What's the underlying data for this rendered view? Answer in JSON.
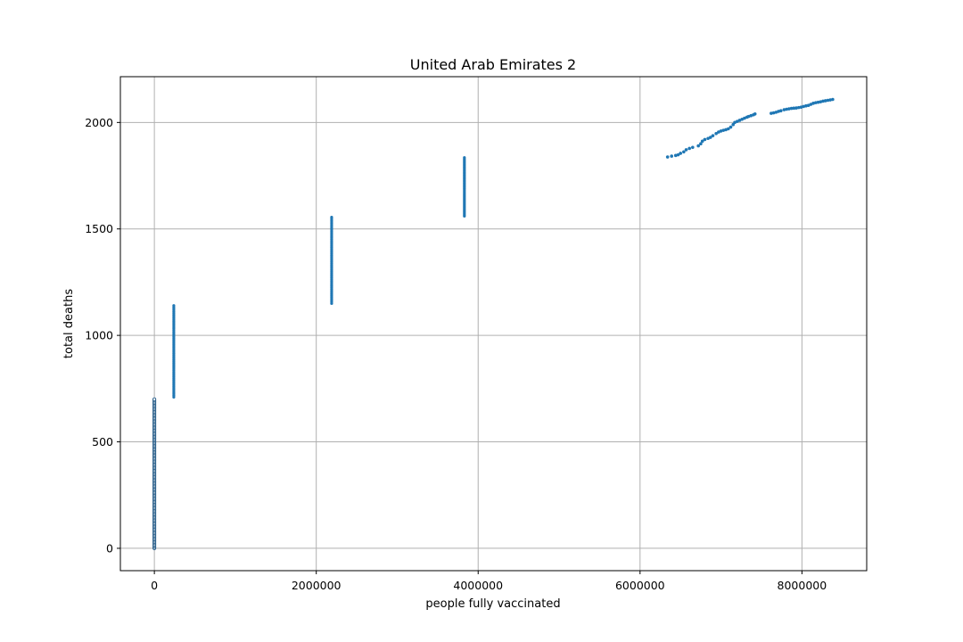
{
  "chart_data": {
    "type": "scatter",
    "title": "United Arab Emirates 2",
    "xlabel": "people fully vaccinated",
    "ylabel": "total deaths",
    "xlim": [
      -420000,
      8800000
    ],
    "ylim": [
      -105,
      2215
    ],
    "x_ticks": [
      0,
      2000000,
      4000000,
      6000000,
      8000000
    ],
    "x_tick_labels": [
      "0",
      "2000000",
      "4000000",
      "6000000",
      "8000000"
    ],
    "y_ticks": [
      0,
      500,
      1000,
      1500,
      2000
    ],
    "y_tick_labels": [
      "0",
      "500",
      "1000",
      "1500",
      "2000"
    ],
    "grid": true,
    "marker_color": "#1f77b4",
    "marker_edge_color": "#2a5f8a",
    "clusters": [
      {
        "x": 0,
        "y_min": 0,
        "y_max": 700,
        "count": 120,
        "marker": "hollow"
      },
      {
        "x": 240000,
        "y_min": 710,
        "y_max": 1140,
        "count": 60,
        "marker": "filled"
      },
      {
        "x": 2190000,
        "y_min": 1150,
        "y_max": 1555,
        "count": 55,
        "marker": "filled"
      },
      {
        "x": 3830000,
        "y_min": 1560,
        "y_max": 1835,
        "count": 45,
        "marker": "filled"
      }
    ],
    "points": [
      [
        6340000,
        1838
      ],
      [
        6390000,
        1842
      ],
      [
        6440000,
        1845
      ],
      [
        6470000,
        1848
      ],
      [
        6500000,
        1855
      ],
      [
        6540000,
        1862
      ],
      [
        6570000,
        1872
      ],
      [
        6610000,
        1878
      ],
      [
        6650000,
        1883
      ],
      [
        6720000,
        1890
      ],
      [
        6750000,
        1900
      ],
      [
        6770000,
        1912
      ],
      [
        6800000,
        1920
      ],
      [
        6840000,
        1925
      ],
      [
        6870000,
        1930
      ],
      [
        6900000,
        1938
      ],
      [
        6940000,
        1948
      ],
      [
        6970000,
        1955
      ],
      [
        7000000,
        1960
      ],
      [
        7030000,
        1963
      ],
      [
        7060000,
        1966
      ],
      [
        7090000,
        1970
      ],
      [
        7120000,
        1978
      ],
      [
        7150000,
        1990
      ],
      [
        7170000,
        2000
      ],
      [
        7200000,
        2005
      ],
      [
        7230000,
        2010
      ],
      [
        7260000,
        2015
      ],
      [
        7290000,
        2020
      ],
      [
        7320000,
        2025
      ],
      [
        7340000,
        2028
      ],
      [
        7370000,
        2032
      ],
      [
        7400000,
        2036
      ],
      [
        7420000,
        2040
      ],
      [
        7620000,
        2043
      ],
      [
        7650000,
        2045
      ],
      [
        7680000,
        2048
      ],
      [
        7710000,
        2052
      ],
      [
        7740000,
        2055
      ],
      [
        7780000,
        2060
      ],
      [
        7810000,
        2062
      ],
      [
        7840000,
        2064
      ],
      [
        7870000,
        2066
      ],
      [
        7900000,
        2067
      ],
      [
        7930000,
        2068
      ],
      [
        7960000,
        2070
      ],
      [
        7990000,
        2072
      ],
      [
        8020000,
        2075
      ],
      [
        8050000,
        2078
      ],
      [
        8080000,
        2080
      ],
      [
        8110000,
        2085
      ],
      [
        8140000,
        2090
      ],
      [
        8170000,
        2093
      ],
      [
        8200000,
        2095
      ],
      [
        8230000,
        2097
      ],
      [
        8260000,
        2100
      ],
      [
        8290000,
        2102
      ],
      [
        8320000,
        2104
      ],
      [
        8350000,
        2106
      ],
      [
        8380000,
        2108
      ]
    ]
  }
}
